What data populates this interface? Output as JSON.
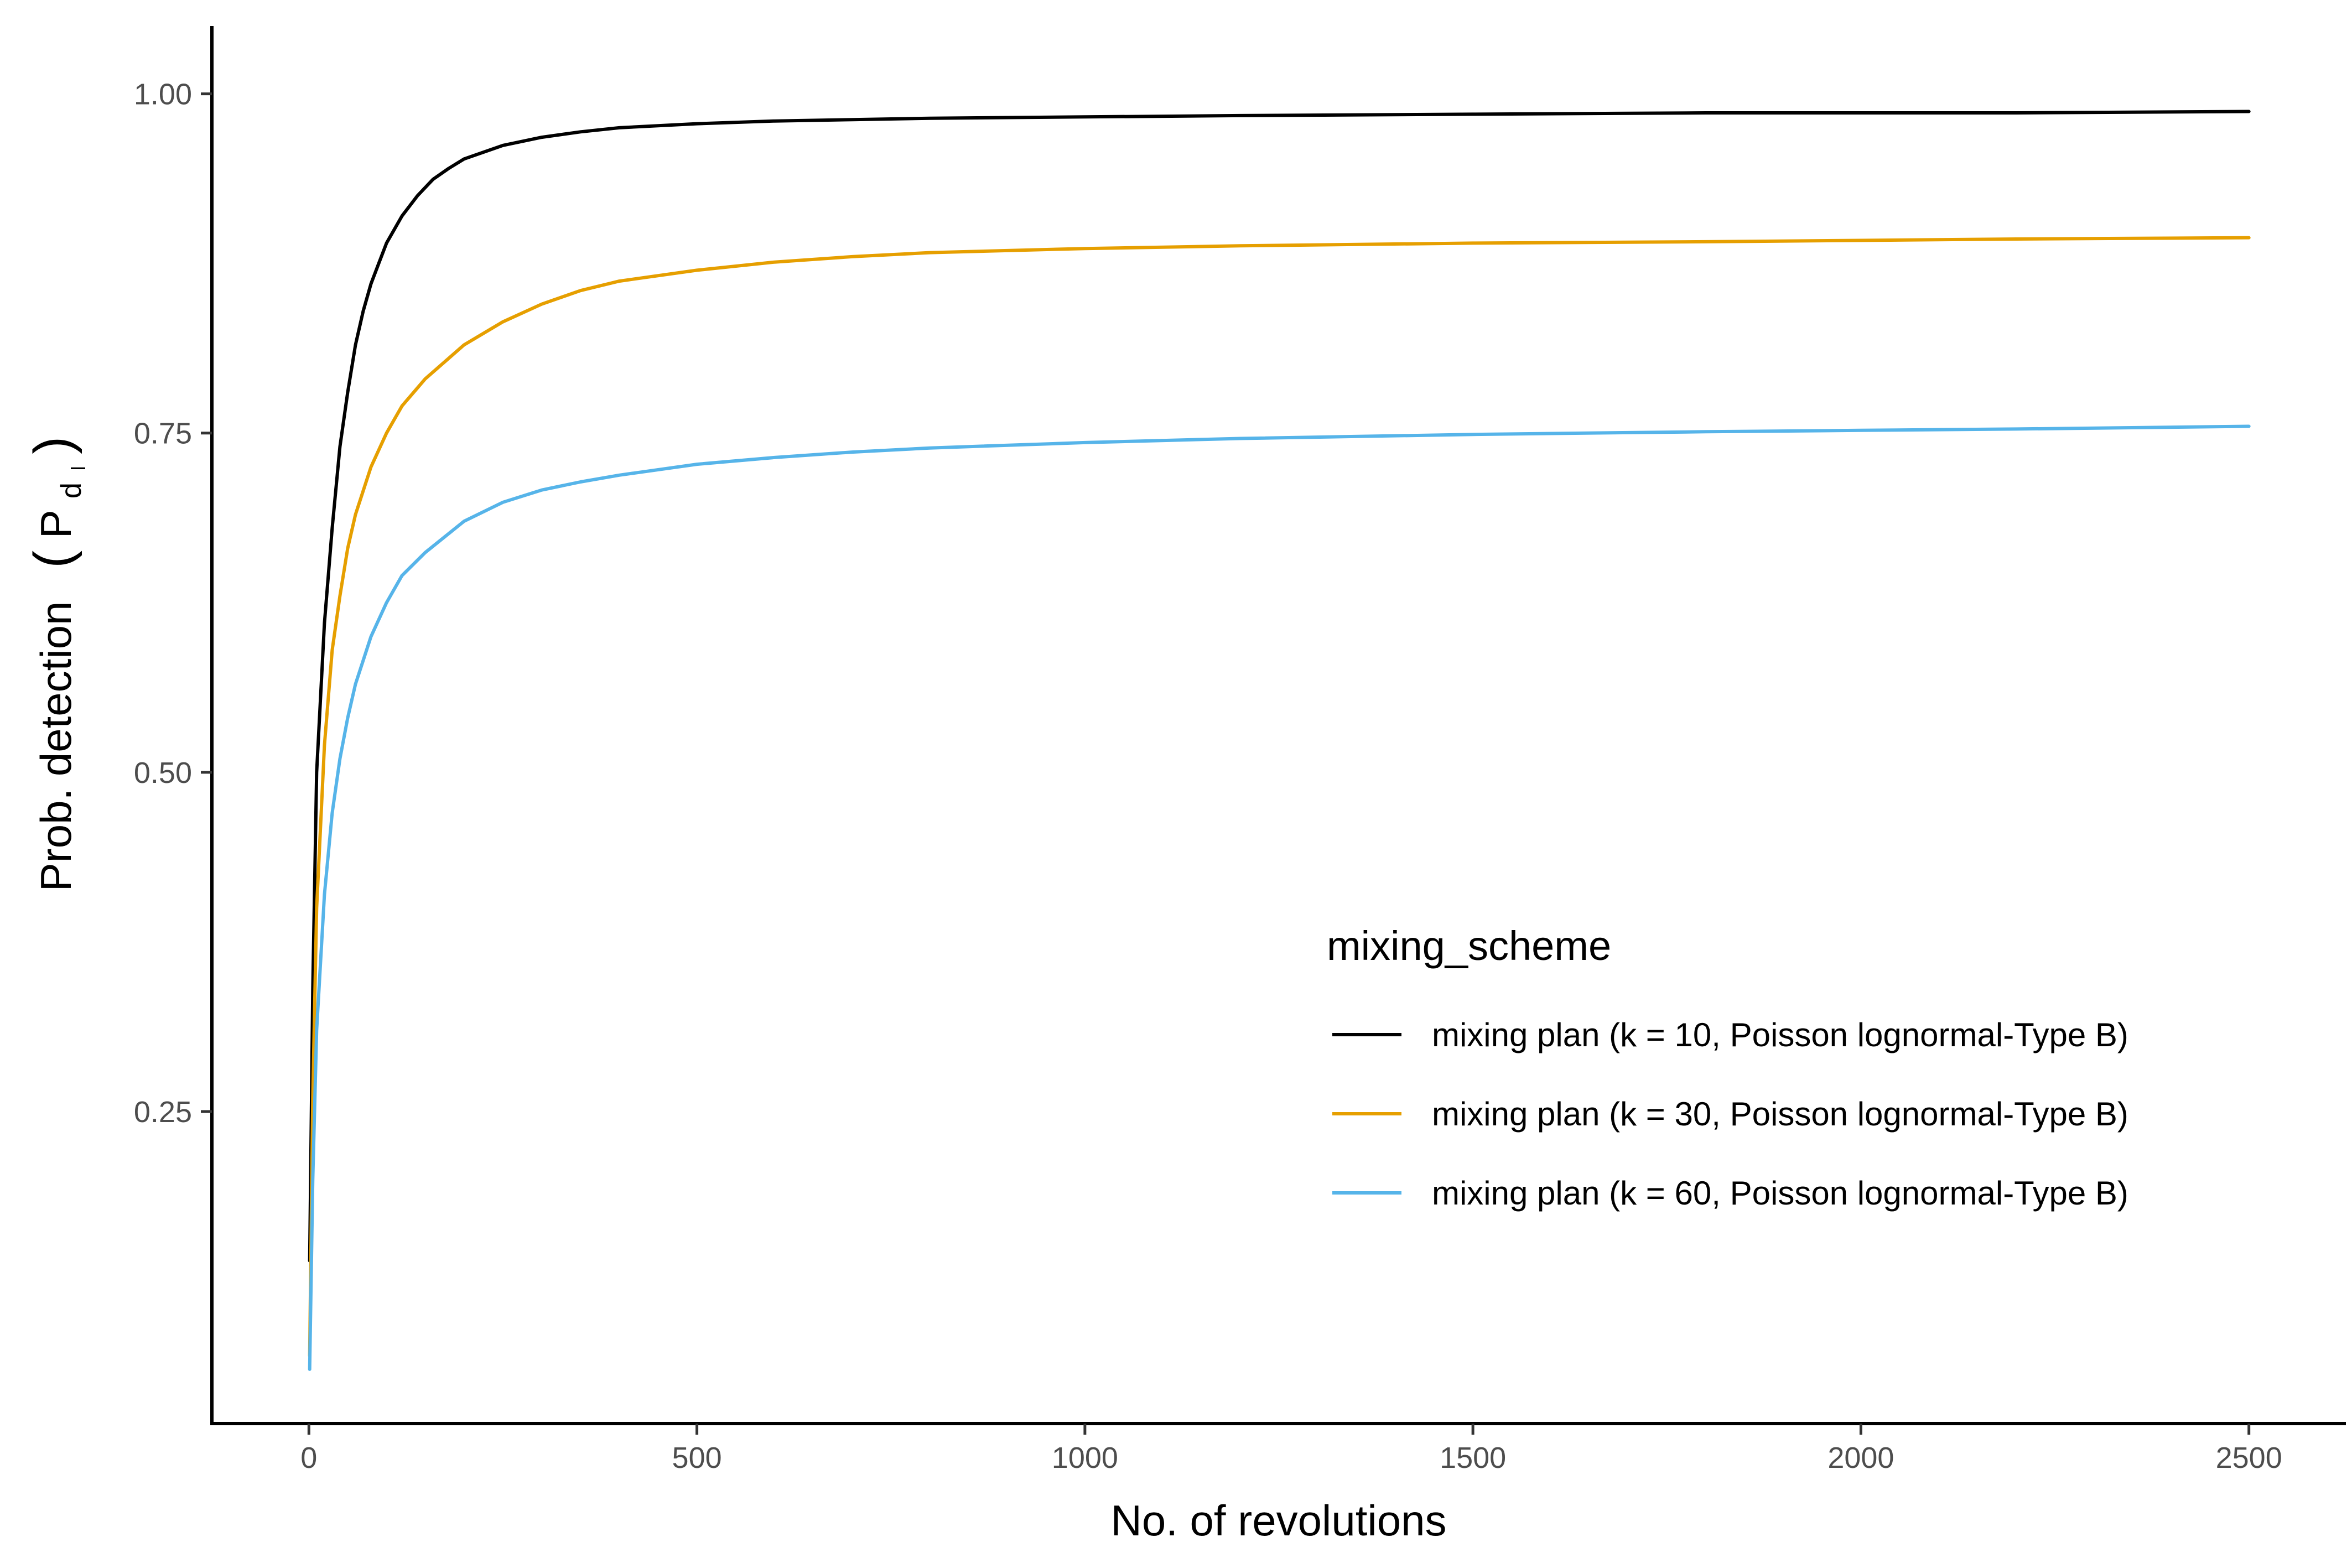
{
  "chart_data": {
    "type": "line",
    "title": "",
    "xlabel": "No. of revolutions",
    "ylabel": {
      "main": "Prob. detection",
      "symbol": "P",
      "subscript": "d",
      "sub_subscript": "l"
    },
    "xlim": [
      -125,
      2625
    ],
    "ylim": [
      0.02,
      1.05
    ],
    "x_ticks": [
      0,
      500,
      1000,
      1500,
      2000,
      2500
    ],
    "x_tick_labels": [
      "0",
      "500",
      "1000",
      "1500",
      "2000",
      "2500"
    ],
    "y_ticks": [
      0.25,
      0.5,
      0.75,
      1.0
    ],
    "y_tick_labels": [
      "0.25",
      "0.50",
      "0.75",
      "1.00"
    ],
    "grid": false,
    "legend": {
      "title": "mixing_scheme",
      "placement": "bottom-right-inside"
    },
    "series": [
      {
        "name": "mixing plan (k = 10, Poisson lognormal-Type B)",
        "color": "#000000",
        "x": [
          1,
          5,
          10,
          20,
          30,
          40,
          50,
          60,
          70,
          80,
          90,
          100,
          120,
          140,
          160,
          180,
          200,
          250,
          300,
          350,
          400,
          500,
          600,
          700,
          800,
          1000,
          1200,
          1500,
          1800,
          2000,
          2200,
          2500
        ],
        "y": [
          0.14,
          0.34,
          0.5,
          0.61,
          0.68,
          0.74,
          0.78,
          0.815,
          0.84,
          0.86,
          0.875,
          0.89,
          0.91,
          0.925,
          0.937,
          0.945,
          0.952,
          0.962,
          0.968,
          0.972,
          0.975,
          0.978,
          0.98,
          0.981,
          0.982,
          0.983,
          0.984,
          0.985,
          0.986,
          0.986,
          0.986,
          0.987
        ]
      },
      {
        "name": "mixing plan (k = 30, Poisson lognormal-Type B)",
        "color": "#E69F00",
        "x": [
          1,
          5,
          10,
          20,
          30,
          40,
          50,
          60,
          80,
          100,
          120,
          150,
          200,
          250,
          300,
          350,
          400,
          500,
          600,
          700,
          800,
          1000,
          1200,
          1500,
          1800,
          2000,
          2200,
          2500
        ],
        "y": [
          0.07,
          0.26,
          0.4,
          0.52,
          0.59,
          0.63,
          0.665,
          0.69,
          0.725,
          0.75,
          0.77,
          0.79,
          0.815,
          0.832,
          0.845,
          0.855,
          0.862,
          0.87,
          0.876,
          0.88,
          0.883,
          0.886,
          0.888,
          0.89,
          0.891,
          0.892,
          0.893,
          0.894
        ]
      },
      {
        "name": "mixing plan (k = 60, Poisson lognormal-Type B)",
        "color": "#56B4E9",
        "x": [
          1,
          5,
          10,
          20,
          30,
          40,
          50,
          60,
          80,
          100,
          120,
          150,
          200,
          250,
          300,
          350,
          400,
          500,
          600,
          700,
          800,
          1000,
          1200,
          1500,
          1800,
          2000,
          2200,
          2500
        ],
        "y": [
          0.06,
          0.2,
          0.31,
          0.41,
          0.47,
          0.51,
          0.54,
          0.565,
          0.6,
          0.625,
          0.645,
          0.662,
          0.685,
          0.699,
          0.708,
          0.714,
          0.719,
          0.727,
          0.732,
          0.736,
          0.739,
          0.743,
          0.746,
          0.749,
          0.751,
          0.752,
          0.753,
          0.755
        ]
      }
    ]
  }
}
